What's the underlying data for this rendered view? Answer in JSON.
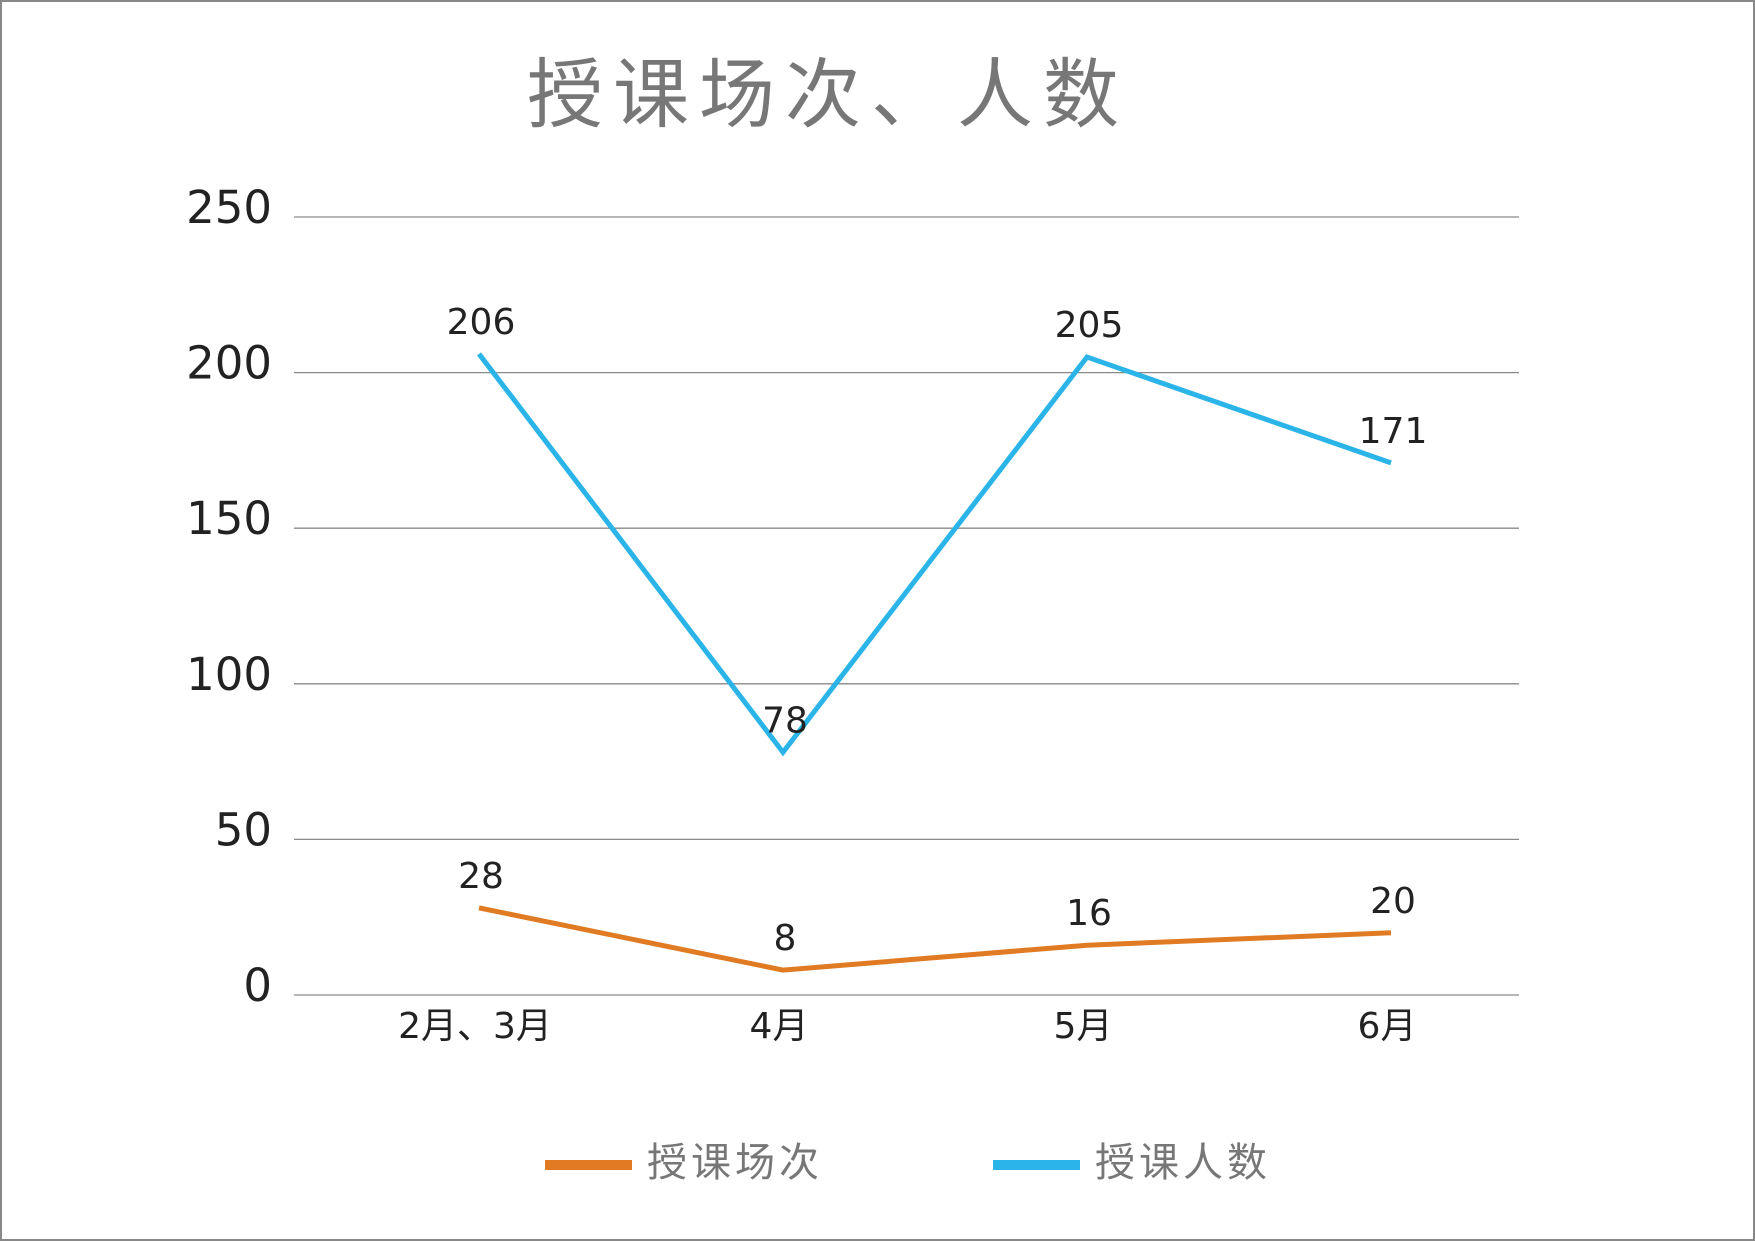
{
  "chart_data": {
    "type": "line",
    "title": "授课场次、人数",
    "categories": [
      "2月、3月",
      "4月",
      "5月",
      "6月"
    ],
    "series": [
      {
        "name": "授课场次",
        "color": "#e07b24",
        "values": [
          28,
          8,
          16,
          20
        ]
      },
      {
        "name": "授课人数",
        "color": "#2ab4e8",
        "values": [
          206,
          78,
          205,
          171
        ]
      }
    ],
    "ylim": [
      0,
      250
    ],
    "yticks": [
      0,
      50,
      100,
      150,
      200,
      250
    ],
    "grid": true,
    "legend": "bottom"
  }
}
